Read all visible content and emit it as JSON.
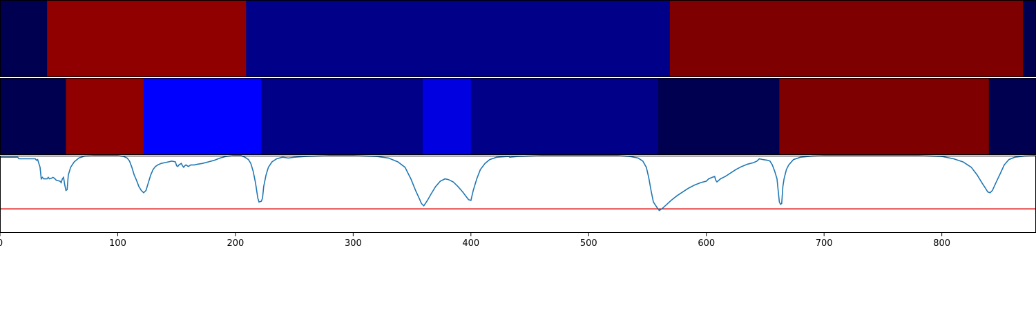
{
  "chart_data": {
    "type": "heatmap",
    "x_range": [
      0,
      880
    ],
    "x_ticks": [
      0,
      100,
      200,
      300,
      400,
      500,
      600,
      700,
      800
    ],
    "x_tick_labels": [
      "0",
      "100",
      "200",
      "300",
      "400",
      "500",
      "600",
      "700",
      "800"
    ],
    "grid": false,
    "legend": "none",
    "rows": [
      {
        "segments": [
          {
            "start": 0,
            "end": 40,
            "color": "#000050"
          },
          {
            "start": 40,
            "end": 209,
            "color": "#900000"
          },
          {
            "start": 209,
            "end": 569,
            "color": "#000088"
          },
          {
            "start": 569,
            "end": 869,
            "color": "#7f0000"
          },
          {
            "start": 869,
            "end": 880,
            "color": "#000050"
          }
        ]
      },
      {
        "segments": [
          {
            "start": 0,
            "end": 56,
            "color": "#000050"
          },
          {
            "start": 56,
            "end": 122,
            "color": "#900000"
          },
          {
            "start": 122,
            "end": 222,
            "color": "#0000ff"
          },
          {
            "start": 222,
            "end": 359,
            "color": "#000088"
          },
          {
            "start": 359,
            "end": 400,
            "color": "#0000e0"
          },
          {
            "start": 400,
            "end": 559,
            "color": "#000088"
          },
          {
            "start": 559,
            "end": 662,
            "color": "#000050"
          },
          {
            "start": 662,
            "end": 840,
            "color": "#7f0000"
          },
          {
            "start": 840,
            "end": 880,
            "color": "#000050"
          }
        ]
      }
    ],
    "line_panel": {
      "y_range": [
        0,
        1
      ],
      "threshold": 0.31,
      "threshold_color": "#dd0000",
      "line_color": "#1f77b4",
      "points": [
        [
          0,
          0.98
        ],
        [
          15,
          0.98
        ],
        [
          16,
          0.96
        ],
        [
          30,
          0.96
        ],
        [
          31,
          0.94
        ],
        [
          32,
          0.95
        ],
        [
          34,
          0.85
        ],
        [
          35,
          0.7
        ],
        [
          36,
          0.72
        ],
        [
          37,
          0.7
        ],
        [
          40,
          0.7
        ],
        [
          41,
          0.72
        ],
        [
          42,
          0.7
        ],
        [
          44,
          0.71
        ],
        [
          45,
          0.72
        ],
        [
          46,
          0.71
        ],
        [
          48,
          0.68
        ],
        [
          51,
          0.67
        ],
        [
          52,
          0.65
        ],
        [
          53,
          0.7
        ],
        [
          54,
          0.72
        ],
        [
          55,
          0.62
        ],
        [
          56,
          0.55
        ],
        [
          57,
          0.56
        ],
        [
          58,
          0.75
        ],
        [
          60,
          0.85
        ],
        [
          63,
          0.92
        ],
        [
          67,
          0.97
        ],
        [
          72,
          0.995
        ],
        [
          80,
          1.0
        ],
        [
          100,
          1.0
        ],
        [
          105,
          0.99
        ],
        [
          108,
          0.97
        ],
        [
          110,
          0.93
        ],
        [
          112,
          0.85
        ],
        [
          114,
          0.75
        ],
        [
          116,
          0.68
        ],
        [
          118,
          0.6
        ],
        [
          120,
          0.55
        ],
        [
          122,
          0.52
        ],
        [
          124,
          0.55
        ],
        [
          126,
          0.65
        ],
        [
          128,
          0.75
        ],
        [
          130,
          0.82
        ],
        [
          132,
          0.86
        ],
        [
          134,
          0.88
        ],
        [
          137,
          0.9
        ],
        [
          140,
          0.91
        ],
        [
          143,
          0.92
        ],
        [
          146,
          0.93
        ],
        [
          149,
          0.92
        ],
        [
          150,
          0.87
        ],
        [
          151,
          0.86
        ],
        [
          152,
          0.88
        ],
        [
          154,
          0.9
        ],
        [
          155,
          0.87
        ],
        [
          156,
          0.85
        ],
        [
          157,
          0.87
        ],
        [
          158,
          0.88
        ],
        [
          160,
          0.86
        ],
        [
          162,
          0.88
        ],
        [
          165,
          0.88
        ],
        [
          168,
          0.89
        ],
        [
          172,
          0.9
        ],
        [
          177,
          0.92
        ],
        [
          182,
          0.94
        ],
        [
          187,
          0.97
        ],
        [
          192,
          0.99
        ],
        [
          198,
          1.0
        ],
        [
          205,
          1.0
        ],
        [
          208,
          0.98
        ],
        [
          211,
          0.95
        ],
        [
          213,
          0.9
        ],
        [
          215,
          0.8
        ],
        [
          217,
          0.65
        ],
        [
          219,
          0.45
        ],
        [
          220,
          0.4
        ],
        [
          222,
          0.41
        ],
        [
          223,
          0.45
        ],
        [
          224,
          0.6
        ],
        [
          226,
          0.75
        ],
        [
          228,
          0.85
        ],
        [
          231,
          0.92
        ],
        [
          235,
          0.96
        ],
        [
          240,
          0.98
        ],
        [
          245,
          0.97
        ],
        [
          250,
          0.98
        ],
        [
          260,
          0.99
        ],
        [
          280,
          1.0
        ],
        [
          300,
          1.0
        ],
        [
          320,
          0.99
        ],
        [
          330,
          0.97
        ],
        [
          338,
          0.92
        ],
        [
          344,
          0.85
        ],
        [
          349,
          0.7
        ],
        [
          353,
          0.55
        ],
        [
          356,
          0.45
        ],
        [
          358,
          0.38
        ],
        [
          360,
          0.35
        ],
        [
          363,
          0.42
        ],
        [
          366,
          0.5
        ],
        [
          370,
          0.6
        ],
        [
          374,
          0.67
        ],
        [
          378,
          0.7
        ],
        [
          381,
          0.69
        ],
        [
          385,
          0.66
        ],
        [
          389,
          0.6
        ],
        [
          393,
          0.53
        ],
        [
          396,
          0.47
        ],
        [
          398,
          0.43
        ],
        [
          400,
          0.42
        ],
        [
          402,
          0.55
        ],
        [
          405,
          0.7
        ],
        [
          408,
          0.82
        ],
        [
          412,
          0.9
        ],
        [
          416,
          0.95
        ],
        [
          422,
          0.98
        ],
        [
          432,
          0.99
        ],
        [
          433,
          0.98
        ],
        [
          440,
          0.99
        ],
        [
          460,
          1.0
        ],
        [
          500,
          1.0
        ],
        [
          525,
          1.0
        ],
        [
          535,
          0.99
        ],
        [
          542,
          0.97
        ],
        [
          546,
          0.93
        ],
        [
          549,
          0.85
        ],
        [
          551,
          0.72
        ],
        [
          553,
          0.55
        ],
        [
          555,
          0.4
        ],
        [
          558,
          0.33
        ],
        [
          560,
          0.29
        ],
        [
          562,
          0.31
        ],
        [
          565,
          0.35
        ],
        [
          570,
          0.42
        ],
        [
          575,
          0.48
        ],
        [
          580,
          0.53
        ],
        [
          585,
          0.58
        ],
        [
          590,
          0.62
        ],
        [
          595,
          0.65
        ],
        [
          600,
          0.67
        ],
        [
          602,
          0.7
        ],
        [
          605,
          0.72
        ],
        [
          607,
          0.73
        ],
        [
          608,
          0.68
        ],
        [
          609,
          0.66
        ],
        [
          612,
          0.7
        ],
        [
          616,
          0.73
        ],
        [
          620,
          0.77
        ],
        [
          625,
          0.82
        ],
        [
          630,
          0.86
        ],
        [
          635,
          0.89
        ],
        [
          640,
          0.91
        ],
        [
          643,
          0.93
        ],
        [
          645,
          0.96
        ],
        [
          648,
          0.95
        ],
        [
          652,
          0.94
        ],
        [
          654,
          0.93
        ],
        [
          656,
          0.88
        ],
        [
          658,
          0.8
        ],
        [
          660,
          0.7
        ],
        [
          661,
          0.55
        ],
        [
          662,
          0.4
        ],
        [
          663,
          0.37
        ],
        [
          664,
          0.38
        ],
        [
          665,
          0.6
        ],
        [
          666,
          0.7
        ],
        [
          668,
          0.82
        ],
        [
          670,
          0.88
        ],
        [
          674,
          0.95
        ],
        [
          680,
          0.98
        ],
        [
          690,
          0.995
        ],
        [
          700,
          1.0
        ],
        [
          780,
          1.0
        ],
        [
          800,
          0.99
        ],
        [
          810,
          0.96
        ],
        [
          818,
          0.92
        ],
        [
          825,
          0.85
        ],
        [
          830,
          0.75
        ],
        [
          834,
          0.65
        ],
        [
          837,
          0.58
        ],
        [
          839,
          0.53
        ],
        [
          841,
          0.52
        ],
        [
          843,
          0.55
        ],
        [
          846,
          0.65
        ],
        [
          850,
          0.78
        ],
        [
          853,
          0.88
        ],
        [
          857,
          0.95
        ],
        [
          862,
          0.98
        ],
        [
          870,
          0.995
        ],
        [
          880,
          1.0
        ]
      ]
    }
  }
}
